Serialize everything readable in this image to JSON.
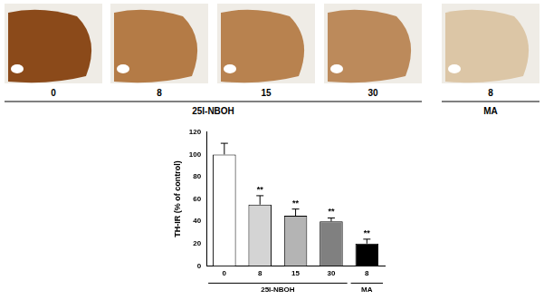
{
  "image_panel": {
    "labels": [
      "0",
      "8",
      "15",
      "30",
      "8"
    ],
    "groups": [
      {
        "label": "25I-NBOH",
        "from": 0,
        "to": 3
      },
      {
        "label": "MA",
        "from": 4,
        "to": 4
      }
    ]
  },
  "chart_data": {
    "type": "bar",
    "y_label": "TH-IR (% of control)",
    "categories": [
      "0",
      "8",
      "15",
      "30",
      "8"
    ],
    "values": [
      100,
      55,
      45,
      40,
      20
    ],
    "errors": [
      10,
      8,
      6,
      3,
      4
    ],
    "significance": [
      null,
      "**",
      "**",
      "**",
      "**"
    ],
    "colors": [
      "#ffffff",
      "#d4d4d4",
      "#b4b4b4",
      "#808080",
      "#000000"
    ],
    "groups": [
      {
        "label": "25I-NBOH",
        "from": 0,
        "to": 3
      },
      {
        "label": "MA",
        "from": 4,
        "to": 4
      }
    ],
    "ylim": [
      0,
      120
    ],
    "yticks": [
      0,
      20,
      40,
      60,
      80,
      100,
      120
    ],
    "grid": false
  }
}
